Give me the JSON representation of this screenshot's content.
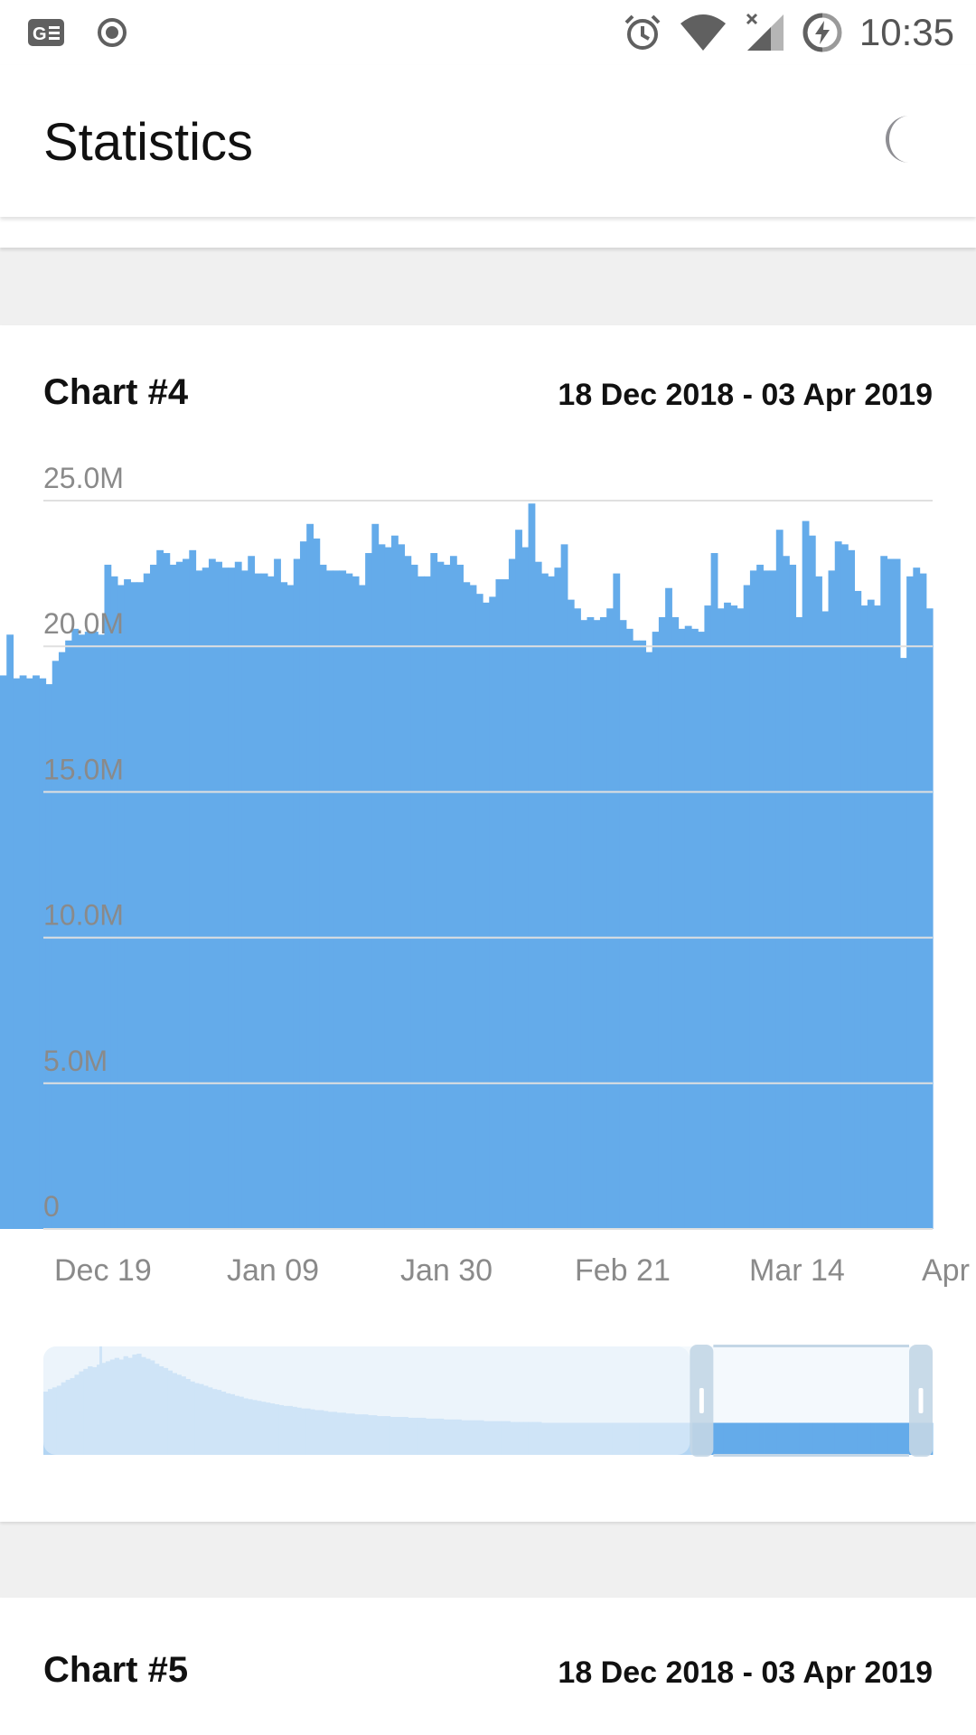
{
  "status_bar": {
    "time": "10:35",
    "icons": [
      "news-icon",
      "record-icon",
      "alarm-icon",
      "wifi-icon",
      "signal-icon",
      "battery-charging-icon"
    ]
  },
  "app_bar": {
    "title": "Statistics",
    "theme_toggle_icon": "moon-icon"
  },
  "cards": [
    {
      "title": "Chart #4",
      "date_range": "18 Dec 2018 - 03 Apr 2019"
    },
    {
      "title": "Chart #5",
      "date_range": "18 Dec 2018 - 03 Apr 2019"
    }
  ],
  "colors": {
    "bar": "#64abea",
    "preview_bar_dim": "#b3d5f3",
    "preview_bar_active": "#64abea",
    "preview_frame": "#c3d6e6",
    "preview_dim_overlay": "#e6f0f9"
  },
  "chart_data": {
    "type": "bar",
    "title": "Chart #4",
    "x_tick_labels": [
      "Dec 19",
      "Jan 09",
      "Jan 30",
      "Feb 21",
      "Mar 14",
      "Apr"
    ],
    "y_tick_labels": [
      "0",
      "5.0M",
      "10.0M",
      "15.0M",
      "20.0M",
      "25.0M"
    ],
    "ylim": [
      0,
      25000000
    ],
    "grid": true,
    "visible_range_start": "Dec 19",
    "visible_range_end": "Apr 03",
    "values": [
      19.0,
      20.4,
      18.9,
      19.0,
      18.9,
      19.0,
      18.9,
      18.7,
      19.5,
      19.8,
      20.2,
      20.6,
      20.4,
      20.5,
      20.5,
      20.4,
      22.8,
      22.4,
      22.1,
      22.3,
      22.2,
      22.2,
      22.5,
      22.8,
      23.3,
      23.2,
      22.8,
      22.9,
      23.0,
      23.3,
      22.6,
      22.7,
      23.0,
      22.9,
      22.7,
      22.7,
      22.9,
      22.6,
      23.1,
      22.5,
      22.5,
      22.4,
      23.0,
      22.2,
      22.1,
      23.0,
      23.6,
      24.2,
      23.7,
      22.8,
      22.6,
      22.6,
      22.6,
      22.5,
      22.4,
      22.1,
      23.2,
      24.2,
      23.5,
      23.4,
      23.8,
      23.5,
      23.1,
      22.8,
      22.4,
      22.4,
      23.2,
      22.9,
      22.8,
      23.1,
      22.8,
      22.2,
      22.1,
      21.8,
      21.5,
      21.7,
      22.3,
      22.3,
      23.0,
      24.0,
      23.4,
      24.9,
      22.9,
      22.5,
      22.4,
      22.7,
      23.5,
      21.6,
      21.3,
      20.9,
      21.0,
      20.9,
      21.0,
      21.3,
      22.5,
      20.9,
      20.6,
      20.2,
      20.2,
      19.8,
      20.5,
      21.0,
      22.0,
      21.0,
      20.6,
      20.7,
      20.6,
      20.5,
      21.4,
      23.2,
      21.3,
      21.5,
      21.4,
      21.3,
      22.1,
      22.6,
      22.8,
      22.6,
      22.6,
      24.0,
      23.1,
      22.8,
      21.0,
      24.3,
      23.8,
      22.4,
      21.2,
      22.6,
      23.6,
      23.5,
      23.3,
      21.9,
      21.4,
      21.6,
      21.4,
      23.1,
      23.0,
      23.0,
      19.6,
      22.4,
      22.7,
      22.5,
      21.3
    ],
    "preview_values": [
      7.5,
      7.8,
      8.0,
      8.2,
      8.6,
      8.9,
      9.1,
      9.5,
      9.9,
      10.2,
      10.5,
      10.4,
      10.7,
      10.9,
      11.1,
      11.3,
      11.5,
      11.3,
      11.7,
      11.5,
      11.9,
      12.0,
      11.6,
      11.4,
      11.2,
      10.8,
      10.5,
      10.3,
      10.0,
      9.7,
      9.5,
      9.3,
      9.0,
      8.7,
      8.5,
      8.4,
      8.2,
      8.0,
      7.8,
      7.7,
      7.5,
      7.3,
      7.2,
      7.0,
      6.9,
      6.7,
      6.6,
      6.5,
      6.4,
      6.3,
      6.2,
      6.1,
      6.0,
      5.9,
      5.8,
      5.8,
      5.7,
      5.6,
      5.5,
      5.5,
      5.4,
      5.3,
      5.3,
      5.2,
      5.1,
      5.1,
      5.0,
      5.0,
      4.9,
      4.9,
      4.8,
      4.8,
      4.8,
      4.7,
      4.7,
      4.6,
      4.6,
      4.6,
      4.5,
      4.5,
      4.5,
      4.5,
      4.4,
      4.4,
      4.4,
      4.4,
      4.3,
      4.3,
      4.3,
      4.3,
      4.2,
      4.2,
      4.2,
      4.2,
      4.1,
      4.1,
      4.1,
      4.1,
      4.1,
      4.0,
      4.0,
      4.0,
      4.0,
      4.0,
      4.0,
      3.9,
      3.9,
      3.9,
      3.9,
      3.9,
      3.9,
      3.9,
      3.8,
      3.8,
      3.8,
      3.8,
      3.8,
      3.8,
      3.8,
      3.8,
      3.8,
      3.8,
      3.8,
      3.8,
      3.8,
      3.8,
      3.8,
      3.8,
      3.8,
      3.8,
      3.8,
      3.8,
      3.8,
      3.8,
      3.8,
      3.8,
      3.8,
      3.8,
      3.8,
      3.8,
      3.8,
      3.8,
      3.8,
      3.8,
      3.8,
      3.8,
      3.8,
      3.8,
      3.8,
      3.8,
      3.8,
      3.8,
      3.8,
      3.8,
      3.8,
      3.8,
      3.8,
      3.8,
      3.8,
      3.8,
      3.8,
      3.8,
      3.8,
      3.8,
      3.8,
      3.8,
      3.8,
      3.8,
      3.8,
      3.8,
      3.8,
      3.8,
      3.8,
      3.8,
      3.8,
      3.8,
      3.8,
      3.8,
      3.8,
      3.8,
      3.8,
      3.8,
      3.8,
      3.8,
      3.8,
      3.8,
      3.8,
      3.8,
      3.8,
      3.8,
      3.8,
      3.8,
      3.8,
      3.8,
      3.8,
      3.8,
      3.8,
      3.8,
      3.8,
      3.8
    ],
    "preview_max": 12.0,
    "selection_start_fraction": 0.727,
    "selection_end_fraction": 1.0
  }
}
